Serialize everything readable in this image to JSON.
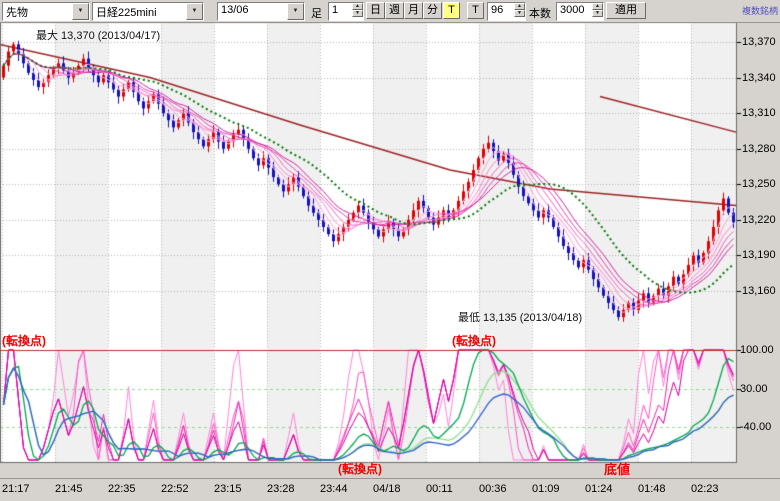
{
  "toolbar": {
    "instrument": "先物",
    "symbol": "日経225mini",
    "contract": "13/06",
    "bar_type_label": "足",
    "interval": "1",
    "period_day": "日",
    "period_week": "週",
    "period_month": "月",
    "period_minute": "分",
    "tick_toggle": "T",
    "t_button": "T",
    "bar_count": "96",
    "bars_label": "本数",
    "total_bars": "3000",
    "apply": "適用",
    "multi_symbol": "複数銘柄"
  },
  "annotations": {
    "max": "最大  13,370  (2013/04/17)",
    "min": "最低  13,135  (2013/04/18)",
    "turn_left": "(転換点)",
    "turn_mid": "(転換点)",
    "turn_bottom": "(転換点)",
    "bottom": "底値"
  },
  "price_axis": [
    "13,370",
    "13,340",
    "13,310",
    "13,280",
    "13,250",
    "13,220",
    "13,190",
    "13,160"
  ],
  "lower_axis": [
    "100.00",
    "30.00",
    "-40.00"
  ],
  "time_axis": [
    "21:17",
    "21:45",
    "22:35",
    "22:52",
    "23:15",
    "23:28",
    "23:44",
    "04/18",
    "00:11",
    "00:36",
    "01:09",
    "01:24",
    "01:48",
    "02:23"
  ],
  "chart_data": {
    "type": "candlestick+oscillator",
    "title": "日経225mini 13/06 1分足",
    "price_max": 13370,
    "price_min": 13135,
    "max_date": "2013/04/17",
    "min_date": "2013/04/18",
    "y_axis_ticks": [
      13370,
      13340,
      13310,
      13280,
      13250,
      13220,
      13190,
      13160
    ],
    "first_open": 13340,
    "closes": [
      13350,
      13362,
      13368,
      13360,
      13352,
      13344,
      13338,
      13332,
      13336,
      13342,
      13348,
      13352,
      13346,
      13340,
      13344,
      13350,
      13356,
      13348,
      13342,
      13336,
      13342,
      13336,
      13330,
      13324,
      13330,
      13336,
      13328,
      13320,
      13314,
      13320,
      13326,
      13318,
      13310,
      13304,
      13298,
      13304,
      13310,
      13302,
      13294,
      13288,
      13282,
      13288,
      13294,
      13286,
      13280,
      13286,
      13292,
      13296,
      13288,
      13280,
      13272,
      13266,
      13272,
      13264,
      13256,
      13250,
      13244,
      13250,
      13256,
      13248,
      13240,
      13232,
      13226,
      13220,
      13214,
      13208,
      13202,
      13208,
      13214,
      13220,
      13226,
      13232,
      13226,
      13218,
      13212,
      13206,
      13212,
      13218,
      13212,
      13206,
      13212,
      13220,
      13228,
      13236,
      13230,
      13222,
      13216,
      13222,
      13228,
      13222,
      13228,
      13236,
      13244,
      13252,
      13262,
      13272,
      13280,
      13285,
      13278,
      13270,
      13276,
      13268,
      13258,
      13248,
      13240,
      13234,
      13228,
      13222,
      13228,
      13222,
      13214,
      13206,
      13198,
      13192,
      13186,
      13180,
      13186,
      13178,
      13170,
      13163,
      13156,
      13150,
      13144,
      13138,
      13144,
      13150,
      13144,
      13152,
      13158,
      13150,
      13156,
      13162,
      13156,
      13164,
      13172,
      13166,
      13174,
      13182,
      13190,
      13184,
      13192,
      13202,
      13214,
      13228,
      13238,
      13226,
      13218
    ],
    "ma_ribbon_periods": [
      3,
      5,
      7,
      9,
      11,
      13
    ],
    "ma_green_period": 21,
    "trendlines": [
      {
        "color": "#9b2323",
        "points": [
          [
            0,
            13368
          ],
          [
            150,
            13340
          ],
          [
            300,
            13300
          ],
          [
            450,
            13262
          ],
          [
            550,
            13246
          ],
          [
            736,
            13232
          ]
        ]
      },
      {
        "color": "#9b2323",
        "points": [
          [
            600,
            13324
          ],
          [
            736,
            13294
          ]
        ]
      }
    ],
    "oscillator": {
      "ribbon_periods": [
        8,
        12,
        16,
        20
      ],
      "green_period": 40,
      "lightgreen_period": 56,
      "blue_period": 72,
      "axis_ticks": [
        100,
        30,
        -40
      ],
      "range": [
        -100,
        100
      ]
    },
    "colors": {
      "up": "#e00000",
      "down": "#1212be",
      "ribbon": [
        "#ffc2e8",
        "#ffa2dc",
        "#ff82d0",
        "#f263c2",
        "#e243b2",
        "#d123a2"
      ],
      "green_ma": "#007a00",
      "osc_ribbon": [
        "#ff85d8",
        "#ff55c8",
        "#f226b2",
        "#d300a2"
      ],
      "osc_green": "#00a84e",
      "osc_lightgreen": "#8fe08f",
      "osc_blue": "#2f5ecf",
      "grid": "#b6b6b6",
      "stripe": "#f0f0f0",
      "osc_grid_green": "#93da93",
      "separator_red": "#c03030"
    }
  }
}
